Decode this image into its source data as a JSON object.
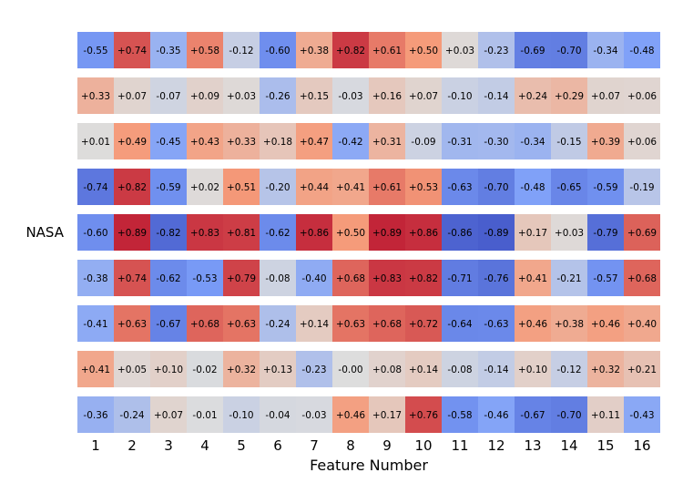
{
  "chart_data": {
    "type": "heatmap",
    "xlabel": "Feature Number",
    "x_ticks": [
      "1",
      "2",
      "3",
      "4",
      "5",
      "6",
      "7",
      "8",
      "9",
      "10",
      "11",
      "12",
      "13",
      "14",
      "15",
      "16"
    ],
    "row_labels": [
      "",
      "",
      "",
      "",
      "NASA",
      "",
      "",
      "",
      ""
    ],
    "color_scale": {
      "colormap": "coolwarm",
      "vmin": -1,
      "vmax": 1
    },
    "grid": false,
    "values": [
      [
        -0.55,
        0.74,
        -0.35,
        0.58,
        -0.12,
        -0.6,
        0.38,
        0.82,
        0.61,
        0.5,
        0.03,
        -0.23,
        -0.69,
        -0.7,
        -0.34,
        -0.48
      ],
      [
        0.33,
        0.07,
        -0.07,
        0.09,
        0.03,
        -0.26,
        0.15,
        -0.03,
        0.16,
        0.07,
        -0.1,
        -0.14,
        0.24,
        0.29,
        0.07,
        0.06
      ],
      [
        0.01,
        0.49,
        -0.45,
        0.43,
        0.33,
        0.18,
        0.47,
        -0.42,
        0.31,
        -0.09,
        -0.31,
        -0.3,
        -0.34,
        -0.15,
        0.39,
        0.06
      ],
      [
        -0.74,
        0.82,
        -0.59,
        0.02,
        0.51,
        -0.2,
        0.44,
        0.41,
        0.61,
        0.53,
        -0.63,
        -0.7,
        -0.48,
        -0.65,
        -0.59,
        -0.19
      ],
      [
        -0.6,
        0.89,
        -0.82,
        0.83,
        0.81,
        -0.62,
        0.86,
        0.5,
        0.89,
        0.86,
        -0.86,
        -0.89,
        0.17,
        0.03,
        -0.79,
        0.69
      ],
      [
        -0.38,
        0.74,
        -0.62,
        -0.53,
        0.79,
        -0.08,
        -0.4,
        0.68,
        0.83,
        0.82,
        -0.71,
        -0.76,
        0.41,
        -0.21,
        -0.57,
        0.68
      ],
      [
        -0.41,
        0.63,
        -0.67,
        0.68,
        0.63,
        -0.24,
        0.14,
        0.63,
        0.68,
        0.72,
        -0.64,
        -0.63,
        0.46,
        0.38,
        0.46,
        0.4
      ],
      [
        0.41,
        0.05,
        0.1,
        -0.02,
        0.32,
        0.13,
        -0.23,
        -0.0,
        0.08,
        0.14,
        -0.08,
        -0.14,
        0.1,
        -0.12,
        0.32,
        0.21
      ],
      [
        -0.36,
        -0.24,
        0.07,
        -0.01,
        -0.1,
        -0.04,
        -0.03,
        0.46,
        0.17,
        0.76,
        -0.58,
        -0.46,
        -0.67,
        -0.7,
        0.11,
        -0.43
      ]
    ]
  }
}
